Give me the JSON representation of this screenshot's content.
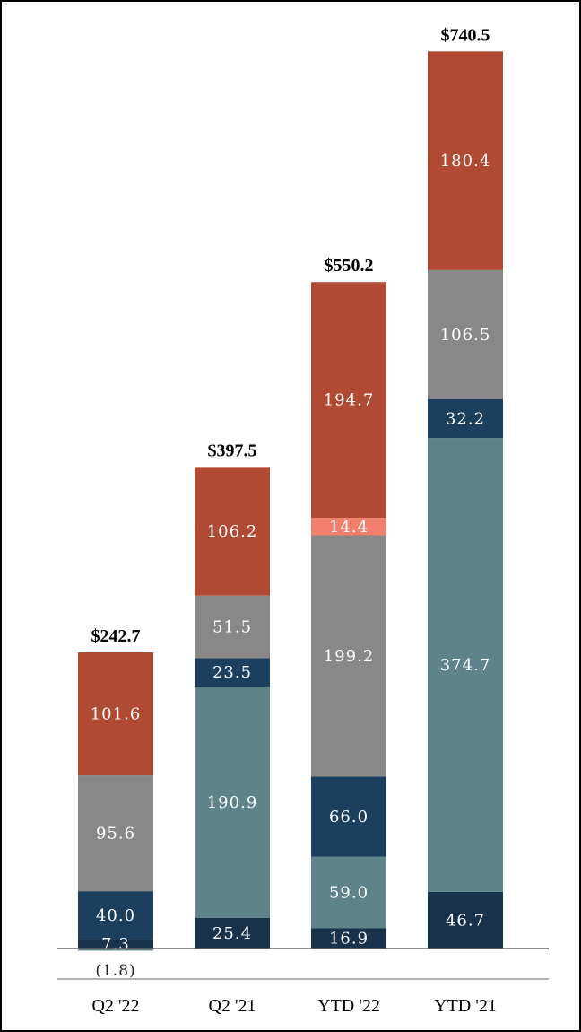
{
  "chart_data": {
    "type": "bar",
    "stacked": true,
    "title": "",
    "xlabel": "",
    "ylabel": "",
    "ylim": [
      -5,
      800
    ],
    "categories": [
      "Q2 '22",
      "Q2 '21",
      "YTD '22",
      "YTD '21"
    ],
    "totals": [
      "$242.7",
      "$397.5",
      "$550.2",
      "$740.5"
    ],
    "negative_labels": [
      "(1.8)",
      "",
      "",
      ""
    ],
    "series": [
      {
        "name": "series-1",
        "color": "#17324a",
        "values": [
          7.3,
          25.4,
          16.9,
          46.7
        ],
        "labels": [
          "7.3",
          "25.4",
          "16.9",
          "46.7"
        ]
      },
      {
        "name": "series-2",
        "color": "#5e838b",
        "values": [
          -1.8,
          190.9,
          59.0,
          374.7
        ],
        "labels": [
          "",
          "190.9",
          "59.0",
          "374.7"
        ]
      },
      {
        "name": "series-3",
        "color": "#1c3f5e",
        "values": [
          40.0,
          23.5,
          66.0,
          32.2
        ],
        "labels": [
          "40.0",
          "23.5",
          "66.0",
          "32.2"
        ]
      },
      {
        "name": "series-4",
        "color": "#888888",
        "values": [
          95.6,
          51.5,
          199.2,
          106.5
        ],
        "labels": [
          "95.6",
          "51.5",
          "199.2",
          "106.5"
        ]
      },
      {
        "name": "series-5",
        "color": "#f0806c",
        "values": [
          0,
          0,
          14.4,
          0
        ],
        "labels": [
          "",
          "",
          "14.4",
          ""
        ]
      },
      {
        "name": "series-6",
        "color": "#b04a32",
        "values": [
          101.6,
          106.2,
          194.7,
          180.4
        ],
        "labels": [
          "101.6",
          "106.2",
          "194.7",
          "180.4"
        ]
      }
    ]
  }
}
